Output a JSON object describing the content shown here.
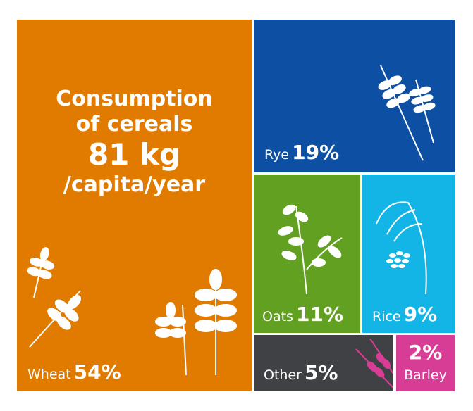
{
  "title": {
    "line1": "Consumption",
    "line2": "of cereals",
    "amount": "81 kg",
    "unit": "/capita/year"
  },
  "chart_data": {
    "type": "treemap",
    "title": "Consumption of cereals 81 kg /capita/year",
    "categories": [
      "Wheat",
      "Rye",
      "Oats",
      "Rice",
      "Other",
      "Barley"
    ],
    "values": [
      54,
      19,
      11,
      9,
      5,
      2
    ],
    "labels": [
      "54%",
      "19%",
      "11%",
      "9%",
      "5%",
      "2%"
    ],
    "colors": [
      "#e07b00",
      "#0d4fa3",
      "#62a021",
      "#13b5e6",
      "#404144",
      "#d83d96"
    ]
  }
}
